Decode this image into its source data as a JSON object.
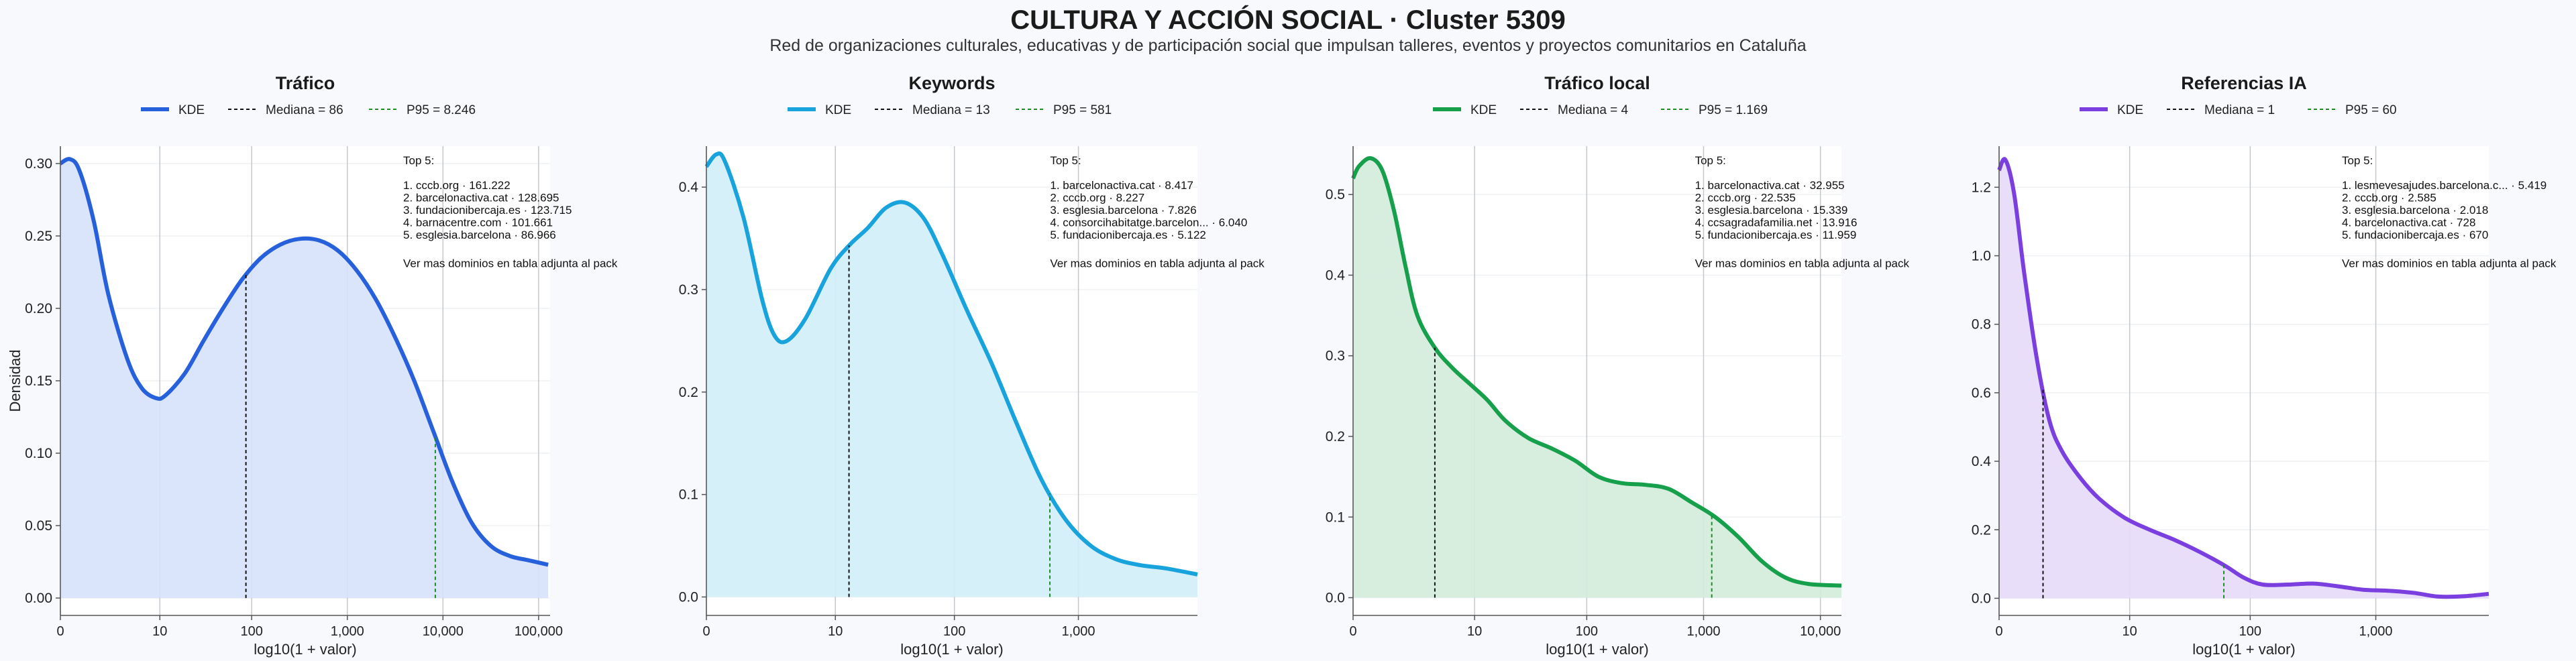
{
  "title": "CULTURA Y ACCIÓN SOCIAL · Cluster 5309",
  "subtitle": "Red de organizaciones culturales, educativas y de participación social que impulsan talleres, eventos y proyectos comunitarios en Cataluña",
  "chart_data": [
    {
      "type": "area",
      "title": "Tráfico",
      "color": "#2760db",
      "fill": "#d6e1fa",
      "xlabel": "log10(1 + valor)",
      "ylabel": "Densidad",
      "xlim": [
        0,
        5.12
      ],
      "ylim": [
        -0.012,
        0.312
      ],
      "xticks": [
        {
          "v": 0,
          "label": "0"
        },
        {
          "v": 1.04,
          "label": "10"
        },
        {
          "v": 2.0,
          "label": "100"
        },
        {
          "v": 3.0,
          "label": "1,000"
        },
        {
          "v": 4.0,
          "label": "10,000"
        },
        {
          "v": 5.0,
          "label": "100,000"
        }
      ],
      "yticks": [
        {
          "v": 0.0,
          "label": "0.00"
        },
        {
          "v": 0.05,
          "label": "0.05"
        },
        {
          "v": 0.1,
          "label": "0.10"
        },
        {
          "v": 0.15,
          "label": "0.15"
        },
        {
          "v": 0.2,
          "label": "0.20"
        },
        {
          "v": 0.25,
          "label": "0.25"
        },
        {
          "v": 0.3,
          "label": "0.30"
        }
      ],
      "legend": {
        "kde": "KDE",
        "median": "Mediana = 86",
        "p95": "P95 = 8.246"
      },
      "median_x": 1.94,
      "p95_x": 3.92,
      "x": [
        0,
        0.1,
        0.2,
        0.35,
        0.5,
        0.7,
        0.85,
        1.0,
        1.1,
        1.3,
        1.5,
        1.7,
        1.9,
        2.1,
        2.3,
        2.5,
        2.7,
        2.9,
        3.1,
        3.3,
        3.5,
        3.7,
        3.9,
        4.1,
        4.3,
        4.5,
        4.7,
        4.9,
        5.1
      ],
      "y": [
        0.3,
        0.303,
        0.295,
        0.26,
        0.21,
        0.165,
        0.145,
        0.138,
        0.14,
        0.155,
        0.178,
        0.2,
        0.22,
        0.235,
        0.244,
        0.248,
        0.247,
        0.24,
        0.226,
        0.206,
        0.18,
        0.15,
        0.115,
        0.08,
        0.052,
        0.036,
        0.029,
        0.026,
        0.023
      ],
      "top": {
        "header": "Top 5:",
        "items": [
          "1. cccb.org · 161.222",
          "2. barcelonactiva.cat · 128.695",
          "3. fundacionibercaja.es · 123.715",
          "4. barnacentre.com · 101.661",
          "5. esglesia.barcelona · 86.966"
        ],
        "footer": "Ver mas dominios en tabla adjunta al pack"
      }
    },
    {
      "type": "area",
      "title": "Keywords",
      "color": "#19a3dd",
      "fill": "#d2eefa",
      "xlabel": "log10(1 + valor)",
      "ylabel": "",
      "xlim": [
        0,
        3.96
      ],
      "ylim": [
        -0.018,
        0.44
      ],
      "xticks": [
        {
          "v": 0,
          "label": "0"
        },
        {
          "v": 1.04,
          "label": "10"
        },
        {
          "v": 2.0,
          "label": "100"
        },
        {
          "v": 3.0,
          "label": "1,000"
        }
      ],
      "yticks": [
        {
          "v": 0.0,
          "label": "0.0"
        },
        {
          "v": 0.1,
          "label": "0.1"
        },
        {
          "v": 0.2,
          "label": "0.2"
        },
        {
          "v": 0.3,
          "label": "0.3"
        },
        {
          "v": 0.4,
          "label": "0.4"
        }
      ],
      "legend": {
        "kde": "KDE",
        "median": "Mediana = 13",
        "p95": "P95 = 581"
      },
      "median_x": 1.15,
      "p95_x": 2.77,
      "x": [
        0,
        0.08,
        0.15,
        0.3,
        0.45,
        0.55,
        0.65,
        0.8,
        1.0,
        1.15,
        1.3,
        1.45,
        1.6,
        1.75,
        1.9,
        2.1,
        2.3,
        2.5,
        2.7,
        2.9,
        3.1,
        3.3,
        3.5,
        3.7,
        3.96
      ],
      "y": [
        0.42,
        0.432,
        0.425,
        0.37,
        0.29,
        0.255,
        0.25,
        0.272,
        0.32,
        0.343,
        0.36,
        0.38,
        0.385,
        0.37,
        0.335,
        0.28,
        0.228,
        0.17,
        0.115,
        0.075,
        0.05,
        0.037,
        0.031,
        0.028,
        0.022
      ],
      "top": {
        "header": "Top 5:",
        "items": [
          "1. barcelonactiva.cat · 8.417",
          "2. cccb.org · 8.227",
          "3. esglesia.barcelona · 7.826",
          "4. consorcihabitatge.barcelon... · 6.040",
          "5. fundacionibercaja.es · 5.122"
        ],
        "footer": "Ver mas dominios en tabla adjunta al pack"
      }
    },
    {
      "type": "area",
      "title": "Tráfico local",
      "color": "#17a04b",
      "fill": "#d3ecdc",
      "xlabel": "log10(1 + valor)",
      "ylabel": "",
      "xlim": [
        0,
        4.18
      ],
      "ylim": [
        -0.022,
        0.56
      ],
      "xticks": [
        {
          "v": 0,
          "label": "0"
        },
        {
          "v": 1.04,
          "label": "10"
        },
        {
          "v": 2.0,
          "label": "100"
        },
        {
          "v": 3.0,
          "label": "1,000"
        },
        {
          "v": 4.0,
          "label": "10,000"
        }
      ],
      "yticks": [
        {
          "v": 0.0,
          "label": "0.0"
        },
        {
          "v": 0.1,
          "label": "0.1"
        },
        {
          "v": 0.2,
          "label": "0.2"
        },
        {
          "v": 0.3,
          "label": "0.3"
        },
        {
          "v": 0.4,
          "label": "0.4"
        },
        {
          "v": 0.5,
          "label": "0.5"
        }
      ],
      "legend": {
        "kde": "KDE",
        "median": "Mediana = 4",
        "p95": "P95 = 1.169"
      },
      "median_x": 0.7,
      "p95_x": 3.07,
      "x": [
        0,
        0.05,
        0.15,
        0.25,
        0.35,
        0.45,
        0.55,
        0.7,
        0.85,
        1.0,
        1.15,
        1.3,
        1.5,
        1.7,
        1.9,
        2.1,
        2.3,
        2.5,
        2.7,
        2.9,
        3.1,
        3.3,
        3.5,
        3.7,
        3.9,
        4.18
      ],
      "y": [
        0.52,
        0.535,
        0.545,
        0.53,
        0.48,
        0.41,
        0.35,
        0.31,
        0.285,
        0.265,
        0.245,
        0.22,
        0.198,
        0.185,
        0.17,
        0.15,
        0.142,
        0.14,
        0.135,
        0.118,
        0.1,
        0.075,
        0.045,
        0.025,
        0.017,
        0.015
      ],
      "top": {
        "header": "Top 5:",
        "items": [
          "1. barcelonactiva.cat · 32.955",
          "2. cccb.org · 22.535",
          "3. esglesia.barcelona · 15.339",
          "4. ccsagradafamilia.net · 13.916",
          "5. fundacionibercaja.es · 11.959"
        ],
        "footer": "Ver mas dominios en tabla adjunta al pack"
      }
    },
    {
      "type": "area",
      "title": "Referencias IA",
      "color": "#7b3fe0",
      "fill": "#e5daf8",
      "xlabel": "log10(1 + valor)",
      "ylabel": "",
      "xlim": [
        0,
        3.9
      ],
      "ylim": [
        -0.05,
        1.32
      ],
      "xticks": [
        {
          "v": 0,
          "label": "0"
        },
        {
          "v": 1.04,
          "label": "10"
        },
        {
          "v": 2.0,
          "label": "100"
        },
        {
          "v": 3.0,
          "label": "1,000"
        }
      ],
      "yticks": [
        {
          "v": 0.0,
          "label": "0.0"
        },
        {
          "v": 0.2,
          "label": "0.2"
        },
        {
          "v": 0.4,
          "label": "0.4"
        },
        {
          "v": 0.6,
          "label": "0.6"
        },
        {
          "v": 0.8,
          "label": "0.8"
        },
        {
          "v": 1.0,
          "label": "1.0"
        },
        {
          "v": 1.2,
          "label": "1.2"
        }
      ],
      "legend": {
        "kde": "KDE",
        "median": "Mediana = 1",
        "p95": "P95 = 60"
      },
      "median_x": 0.35,
      "p95_x": 1.79,
      "x": [
        0,
        0.05,
        0.12,
        0.2,
        0.3,
        0.4,
        0.5,
        0.65,
        0.8,
        1.0,
        1.2,
        1.4,
        1.6,
        1.8,
        1.95,
        2.1,
        2.3,
        2.5,
        2.7,
        2.9,
        3.1,
        3.3,
        3.5,
        3.7,
        3.9
      ],
      "y": [
        1.25,
        1.28,
        1.18,
        0.95,
        0.7,
        0.52,
        0.43,
        0.35,
        0.29,
        0.235,
        0.2,
        0.17,
        0.135,
        0.095,
        0.06,
        0.04,
        0.04,
        0.043,
        0.035,
        0.025,
        0.022,
        0.016,
        0.005,
        0.006,
        0.013
      ],
      "top": {
        "header": "Top 5:",
        "items": [
          "1. lesmevesajudes.barcelona.c... · 5.419",
          "2. cccb.org · 2.585",
          "3. esglesia.barcelona · 2.018",
          "4. barcelonactiva.cat · 728",
          "5. fundacionibercaja.es · 670"
        ],
        "footer": "Ver mas dominios en tabla adjunta al pack"
      }
    }
  ]
}
